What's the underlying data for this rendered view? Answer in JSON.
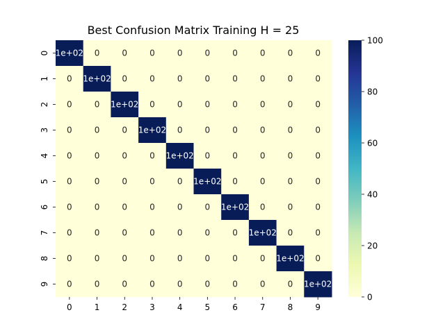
{
  "chart_data": {
    "type": "heatmap",
    "title": "Best Confusion Matrix Training H = 25",
    "xlabel": "",
    "ylabel": "",
    "x_ticks": [
      "0",
      "1",
      "2",
      "3",
      "4",
      "5",
      "6",
      "7",
      "8",
      "9"
    ],
    "y_ticks": [
      "0",
      "1",
      "2",
      "3",
      "4",
      "5",
      "6",
      "7",
      "8",
      "9"
    ],
    "values": [
      [
        100,
        0,
        0,
        0,
        0,
        0,
        0,
        0,
        0,
        0
      ],
      [
        0,
        100,
        0,
        0,
        0,
        0,
        0,
        0,
        0,
        0
      ],
      [
        0,
        0,
        100,
        0,
        0,
        0,
        0,
        0,
        0,
        0
      ],
      [
        0,
        0,
        0,
        100,
        0,
        0,
        0,
        0,
        0,
        0
      ],
      [
        0,
        0,
        0,
        0,
        100,
        0,
        0,
        0,
        0,
        0
      ],
      [
        0,
        0,
        0,
        0,
        0,
        100,
        0,
        0,
        0,
        0
      ],
      [
        0,
        0,
        0,
        0,
        0,
        0,
        100,
        0,
        0,
        0
      ],
      [
        0,
        0,
        0,
        0,
        0,
        0,
        0,
        100,
        0,
        0
      ],
      [
        0,
        0,
        0,
        0,
        0,
        0,
        0,
        0,
        100,
        0
      ],
      [
        0,
        0,
        0,
        0,
        0,
        0,
        0,
        0,
        0,
        100
      ]
    ],
    "annotation_max_label": "1e+02",
    "annotation_zero_label": "0",
    "colorbar": {
      "range": [
        0,
        100
      ],
      "ticks": [
        0,
        20,
        40,
        60,
        80,
        100
      ],
      "colormap": "YlGnBu",
      "colors": [
        "#ffffd9",
        "#edf8b1",
        "#c7e9b4",
        "#7fcdbb",
        "#41b6c4",
        "#1d91c0",
        "#225ea8",
        "#253494",
        "#081d58"
      ]
    }
  }
}
